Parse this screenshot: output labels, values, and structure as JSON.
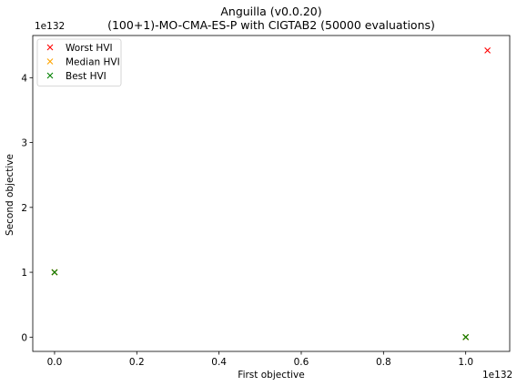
{
  "chart_data": {
    "type": "scatter",
    "title": "Anguilla (v0.0.20)",
    "subtitle": "(100+1)-MO-CMA-ES-P with CIGTAB2 (50000 evaluations)",
    "xlabel": "First objective",
    "ylabel": "Second objective",
    "x_offset_label": "1e132",
    "y_offset_label": "1e132",
    "xlim": [
      -0.053,
      1.107
    ],
    "ylim": [
      -0.22,
      4.65
    ],
    "x_ticks": [
      0.0,
      0.2,
      0.4,
      0.6,
      0.8,
      1.0
    ],
    "x_tick_labels": [
      "0.0",
      "0.2",
      "0.4",
      "0.6",
      "0.8",
      "1.0"
    ],
    "y_ticks": [
      0,
      1,
      2,
      3,
      4
    ],
    "y_tick_labels": [
      "0",
      "1",
      "2",
      "3",
      "4"
    ],
    "grid": false,
    "legend_position": "upper-left",
    "marker": "x",
    "series": [
      {
        "name": "Worst HVI",
        "color": "#ff0000",
        "points": [
          [
            1.0,
            0.0
          ],
          [
            0.0,
            1.0
          ],
          [
            1.053,
            4.42
          ]
        ]
      },
      {
        "name": "Median HVI",
        "color": "#ffa500",
        "points": [
          [
            1.0,
            0.0
          ],
          [
            0.0,
            1.0
          ]
        ]
      },
      {
        "name": "Best HVI",
        "color": "#008000",
        "points": [
          [
            1.0,
            0.0
          ],
          [
            0.0,
            1.0
          ]
        ]
      }
    ]
  }
}
